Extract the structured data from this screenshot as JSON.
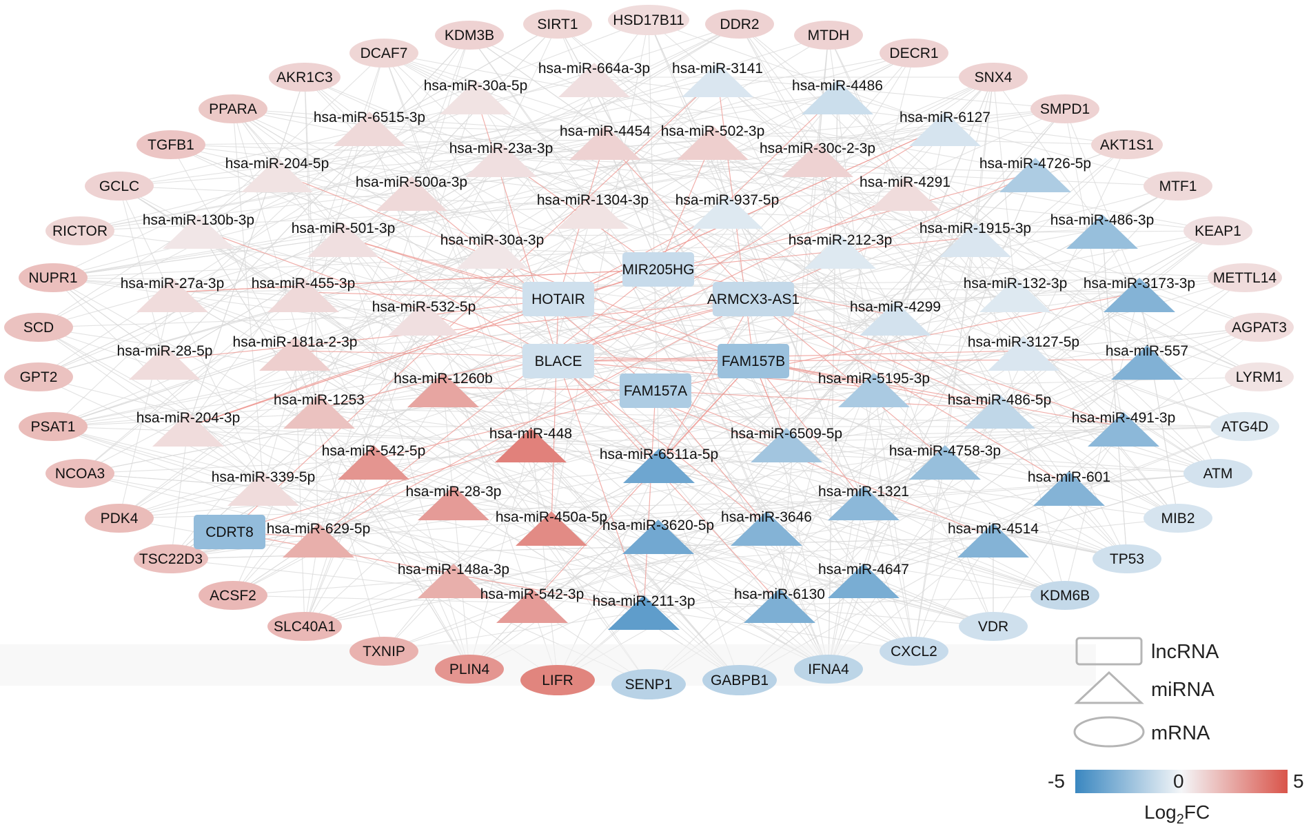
{
  "colors": {
    "negative": "#3a87c0",
    "neutral": "#f4f6f8",
    "positive": "#d9544a",
    "edge_gray": "#d9d9d9",
    "edge_red": "#ee9b95"
  },
  "legend": {
    "lncRNA": "lncRNA",
    "miRNA": "miRNA",
    "mRNA": "mRNA"
  },
  "colorbar": {
    "min_label": "-5",
    "mid_label": "0",
    "max_label": "5",
    "title": "Log",
    "title_sub": "2",
    "title_suffix": "FC",
    "min": -5,
    "max": 5
  },
  "lncRNAs": [
    {
      "name": "MIR205HG",
      "fc": -1.2
    },
    {
      "name": "HOTAIR",
      "fc": -1.0
    },
    {
      "name": "ARMCX3-AS1",
      "fc": -1.3
    },
    {
      "name": "BLACE",
      "fc": -1.0
    },
    {
      "name": "FAM157B",
      "fc": -2.4
    },
    {
      "name": "FAM157A",
      "fc": -1.9
    },
    {
      "name": "CDRT8",
      "fc": -2.6
    }
  ],
  "miRNAs": [
    {
      "name": "hsa-miR-664a-3p",
      "fc": 0.7
    },
    {
      "name": "hsa-miR-3141",
      "fc": -0.7
    },
    {
      "name": "hsa-miR-30a-5p",
      "fc": 0.6
    },
    {
      "name": "hsa-miR-4486",
      "fc": -1.1
    },
    {
      "name": "hsa-miR-6515-3p",
      "fc": 0.9
    },
    {
      "name": "hsa-miR-6127",
      "fc": -0.8
    },
    {
      "name": "hsa-miR-4454",
      "fc": 1.1
    },
    {
      "name": "hsa-miR-502-3p",
      "fc": 1.2
    },
    {
      "name": "hsa-miR-23a-3p",
      "fc": 0.7
    },
    {
      "name": "hsa-miR-30c-2-3p",
      "fc": 1.1
    },
    {
      "name": "hsa-miR-204-5p",
      "fc": 0.6
    },
    {
      "name": "hsa-miR-4726-5p",
      "fc": -1.9
    },
    {
      "name": "hsa-miR-500a-3p",
      "fc": 0.9
    },
    {
      "name": "hsa-miR-4291",
      "fc": 0.8
    },
    {
      "name": "hsa-miR-1304-3p",
      "fc": 0.6
    },
    {
      "name": "hsa-miR-937-5p",
      "fc": -0.6
    },
    {
      "name": "hsa-miR-130b-3p",
      "fc": 0.5
    },
    {
      "name": "hsa-miR-501-3p",
      "fc": 0.7
    },
    {
      "name": "hsa-miR-486-3p",
      "fc": -2.5
    },
    {
      "name": "hsa-miR-1915-3p",
      "fc": -0.7
    },
    {
      "name": "hsa-miR-30a-3p",
      "fc": 0.5
    },
    {
      "name": "hsa-miR-212-3p",
      "fc": -0.6
    },
    {
      "name": "hsa-miR-27a-3p",
      "fc": 0.8
    },
    {
      "name": "hsa-miR-455-3p",
      "fc": 0.9
    },
    {
      "name": "hsa-miR-132-3p",
      "fc": -0.6
    },
    {
      "name": "hsa-miR-3173-3p",
      "fc": -3.0
    },
    {
      "name": "hsa-miR-532-5p",
      "fc": 0.7
    },
    {
      "name": "hsa-miR-4299",
      "fc": -0.9
    },
    {
      "name": "hsa-miR-28-5p",
      "fc": 0.8
    },
    {
      "name": "hsa-miR-181a-2-3p",
      "fc": 1.2
    },
    {
      "name": "hsa-miR-3127-5p",
      "fc": -0.7
    },
    {
      "name": "hsa-miR-557",
      "fc": -3.1
    },
    {
      "name": "hsa-miR-1260b",
      "fc": 2.5
    },
    {
      "name": "hsa-miR-5195-3p",
      "fc": -2.0
    },
    {
      "name": "hsa-miR-1253",
      "fc": 1.6
    },
    {
      "name": "hsa-miR-486-5p",
      "fc": -1.4
    },
    {
      "name": "hsa-miR-204-3p",
      "fc": 0.8
    },
    {
      "name": "hsa-miR-448",
      "fc": 3.6
    },
    {
      "name": "hsa-miR-6509-5p",
      "fc": -2.2
    },
    {
      "name": "hsa-miR-491-3p",
      "fc": -2.8
    },
    {
      "name": "hsa-miR-542-5p",
      "fc": 3.0
    },
    {
      "name": "hsa-miR-6511a-5p",
      "fc": -3.6
    },
    {
      "name": "hsa-miR-4758-3p",
      "fc": -2.5
    },
    {
      "name": "hsa-miR-339-5p",
      "fc": 0.8
    },
    {
      "name": "hsa-miR-601",
      "fc": -3.0
    },
    {
      "name": "hsa-miR-28-3p",
      "fc": 2.8
    },
    {
      "name": "hsa-miR-1321",
      "fc": -2.8
    },
    {
      "name": "hsa-miR-450a-5p",
      "fc": 3.3
    },
    {
      "name": "hsa-miR-3646",
      "fc": -3.0
    },
    {
      "name": "hsa-miR-629-5p",
      "fc": 2.2
    },
    {
      "name": "hsa-miR-3620-5p",
      "fc": -3.5
    },
    {
      "name": "hsa-miR-4514",
      "fc": -3.0
    },
    {
      "name": "hsa-miR-148a-3p",
      "fc": 2.2
    },
    {
      "name": "hsa-miR-4647",
      "fc": -3.3
    },
    {
      "name": "hsa-miR-542-3p",
      "fc": 2.8
    },
    {
      "name": "hsa-miR-211-3p",
      "fc": -4.0
    },
    {
      "name": "hsa-miR-6130",
      "fc": -3.2
    }
  ],
  "mRNAs": [
    {
      "name": "KDM3B",
      "fc": 1.1
    },
    {
      "name": "SIRT1",
      "fc": 1.0
    },
    {
      "name": "HSD17B11",
      "fc": 0.8
    },
    {
      "name": "DDR2",
      "fc": 1.1
    },
    {
      "name": "MTDH",
      "fc": 1.1
    },
    {
      "name": "DCAF7",
      "fc": 1.0
    },
    {
      "name": "DECR1",
      "fc": 1.1
    },
    {
      "name": "AKR1C3",
      "fc": 1.1
    },
    {
      "name": "SNX4",
      "fc": 1.1
    },
    {
      "name": "PPARA",
      "fc": 1.4
    },
    {
      "name": "SMPD1",
      "fc": 1.1
    },
    {
      "name": "TGFB1",
      "fc": 1.5
    },
    {
      "name": "AKT1S1",
      "fc": 1.0
    },
    {
      "name": "GCLC",
      "fc": 1.1
    },
    {
      "name": "MTF1",
      "fc": 0.9
    },
    {
      "name": "RICTOR",
      "fc": 1.0
    },
    {
      "name": "KEAP1",
      "fc": 0.7
    },
    {
      "name": "NUPR1",
      "fc": 1.7
    },
    {
      "name": "METTL14",
      "fc": 0.8
    },
    {
      "name": "SCD",
      "fc": 1.6
    },
    {
      "name": "AGPAT3",
      "fc": 0.8
    },
    {
      "name": "GPT2",
      "fc": 1.6
    },
    {
      "name": "LYRM1",
      "fc": 0.6
    },
    {
      "name": "PSAT1",
      "fc": 1.8
    },
    {
      "name": "ATG4D",
      "fc": -0.6
    },
    {
      "name": "NCOA3",
      "fc": 1.7
    },
    {
      "name": "ATM",
      "fc": -0.9
    },
    {
      "name": "PDK4",
      "fc": 1.8
    },
    {
      "name": "MIB2",
      "fc": -0.8
    },
    {
      "name": "TSC22D3",
      "fc": 1.7
    },
    {
      "name": "TP53",
      "fc": -1.0
    },
    {
      "name": "ACSF2",
      "fc": 1.9
    },
    {
      "name": "KDM6B",
      "fc": -1.3
    },
    {
      "name": "SLC40A1",
      "fc": 1.9
    },
    {
      "name": "VDR",
      "fc": -1.0
    },
    {
      "name": "TXNIP",
      "fc": 2.1
    },
    {
      "name": "CXCL2",
      "fc": -1.2
    },
    {
      "name": "PLIN4",
      "fc": 3.0
    },
    {
      "name": "IFNA4",
      "fc": -1.5
    },
    {
      "name": "LIFR",
      "fc": 3.5
    },
    {
      "name": "GABPB1",
      "fc": -1.6
    },
    {
      "name": "SENP1",
      "fc": -1.6
    }
  ]
}
